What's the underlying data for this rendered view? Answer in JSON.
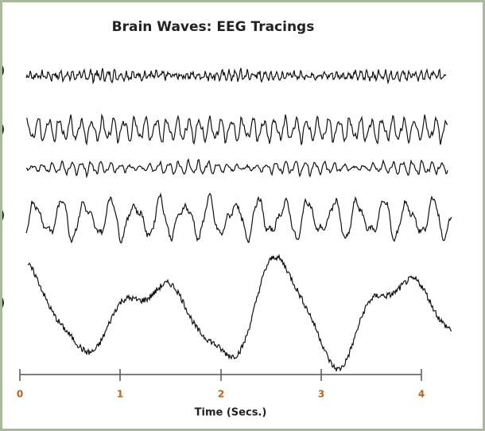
{
  "header": {
    "title": "Brain Waves: EEG Tracings"
  },
  "row_labels": [
    ")",
    ")",
    ")",
    ")"
  ],
  "axis": {
    "label": "Time (Secs.)",
    "ticks": [
      "0",
      "1",
      "2",
      "3",
      "4"
    ]
  }
}
